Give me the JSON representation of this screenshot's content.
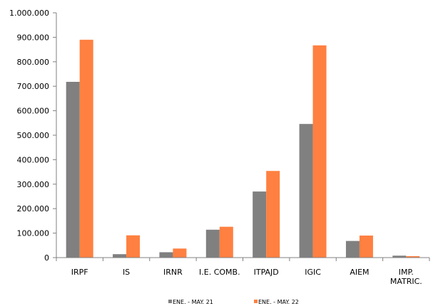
{
  "chart_data": {
    "type": "bar",
    "title": "",
    "xlabel": "",
    "ylabel": "",
    "categories": [
      "IRPF",
      "IS",
      "IRNR",
      "I.E. COMB.",
      "ITPAJD",
      "IGIC",
      "AIEM",
      "IMP. MATRIC."
    ],
    "category_lines": [
      [
        "IRPF"
      ],
      [
        "IS"
      ],
      [
        "IRNR"
      ],
      [
        "I.E. COMB."
      ],
      [
        "ITPAJD"
      ],
      [
        "IGIC"
      ],
      [
        "AIEM"
      ],
      [
        "IMP.",
        "MATRIC."
      ]
    ],
    "series": [
      {
        "name": "ENE. - MAY. 21",
        "color": "#808080",
        "values": [
          718000,
          14000,
          22000,
          114000,
          270000,
          546000,
          68000,
          8000
        ]
      },
      {
        "name": "ENE. - MAY. 22",
        "color": "#FF8040",
        "values": [
          890000,
          91000,
          37000,
          126000,
          354000,
          867000,
          90000,
          6000
        ]
      }
    ],
    "ylim": [
      0,
      1000000
    ],
    "yticks": [
      0,
      100000,
      200000,
      300000,
      400000,
      500000,
      600000,
      700000,
      800000,
      900000,
      1000000
    ],
    "ytick_labels": [
      "0",
      "100.000",
      "200.000",
      "300.000",
      "400.000",
      "500.000",
      "600.000",
      "700.000",
      "800.000",
      "900.000",
      "1.000.000"
    ],
    "grid": false,
    "legend": "bottom"
  }
}
